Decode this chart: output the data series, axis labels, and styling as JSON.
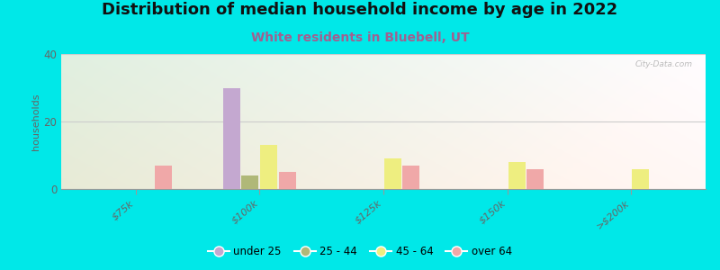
{
  "title": "Distribution of median household income by age in 2022",
  "subtitle": "White residents in Bluebell, UT",
  "ylabel": "households",
  "categories": [
    "$75k",
    "$100k",
    "$125k",
    "$150k",
    ">$200k"
  ],
  "age_groups": [
    "under 25",
    "25 - 44",
    "45 - 64",
    "over 64"
  ],
  "colors": [
    "#c4a8d0",
    "#b0b878",
    "#eeee80",
    "#f0a8a8"
  ],
  "values": [
    [
      0,
      0,
      0,
      7
    ],
    [
      30,
      4,
      13,
      5
    ],
    [
      0,
      0,
      9,
      7
    ],
    [
      0,
      0,
      8,
      6
    ],
    [
      0,
      0,
      6,
      0
    ]
  ],
  "ylim": [
    0,
    40
  ],
  "yticks": [
    0,
    20,
    40
  ],
  "outer_bg": "#00e8e8",
  "watermark": "City-Data.com",
  "bar_width": 0.15,
  "title_fontsize": 13,
  "subtitle_fontsize": 10,
  "subtitle_color": "#a06090",
  "ylabel_fontsize": 8,
  "tick_label_color": "#666666",
  "grid_color": "#cccccc"
}
